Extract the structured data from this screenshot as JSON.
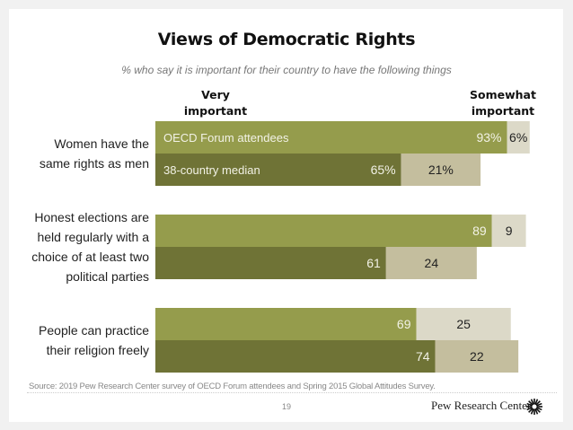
{
  "chart_data": {
    "type": "bar",
    "orientation": "horizontal-stacked",
    "title": "Views of Democratic Rights",
    "subtitle": "% who say it is important for their country to have the following things",
    "column_headers": [
      "Very\nimportant",
      "Somewhat\nimportant"
    ],
    "series_labels": [
      "OECD Forum attendees",
      "38-country median"
    ],
    "categories": [
      "Women have the same rights as men",
      "Honest elections are held regularly with a choice of at least two political parties",
      "People can practice their religion freely"
    ],
    "category_lines": [
      [
        "Women have the",
        "same rights as men"
      ],
      [
        "Honest elections are",
        "held regularly with a",
        "choice of at least two",
        "political parties"
      ],
      [
        "People can practice",
        "their religion freely"
      ]
    ],
    "groups": [
      {
        "OECD Forum attendees": {
          "very": 93,
          "somewhat": 6
        },
        "38-country median": {
          "very": 65,
          "somewhat": 21
        }
      },
      {
        "OECD Forum attendees": {
          "very": 89,
          "somewhat": 9
        },
        "38-country median": {
          "very": 61,
          "somewhat": 24
        }
      },
      {
        "OECD Forum attendees": {
          "very": 69,
          "somewhat": 25
        },
        "38-country median": {
          "very": 74,
          "somewhat": 22
        }
      }
    ],
    "value_labels_show_percent_first_group": true,
    "xlim": [
      0,
      100
    ],
    "colors": {
      "oecd_very": "#959c4c",
      "oecd_somewhat": "#dcd9c8",
      "median_very": "#6f7336",
      "median_somewhat": "#c4be9e"
    }
  },
  "footer": {
    "source": "Source: 2019 Pew Research Center survey of OECD Forum attendees and Spring 2015 Global Attitudes Survey.",
    "page_number": "19",
    "brand": "Pew Research Center"
  }
}
